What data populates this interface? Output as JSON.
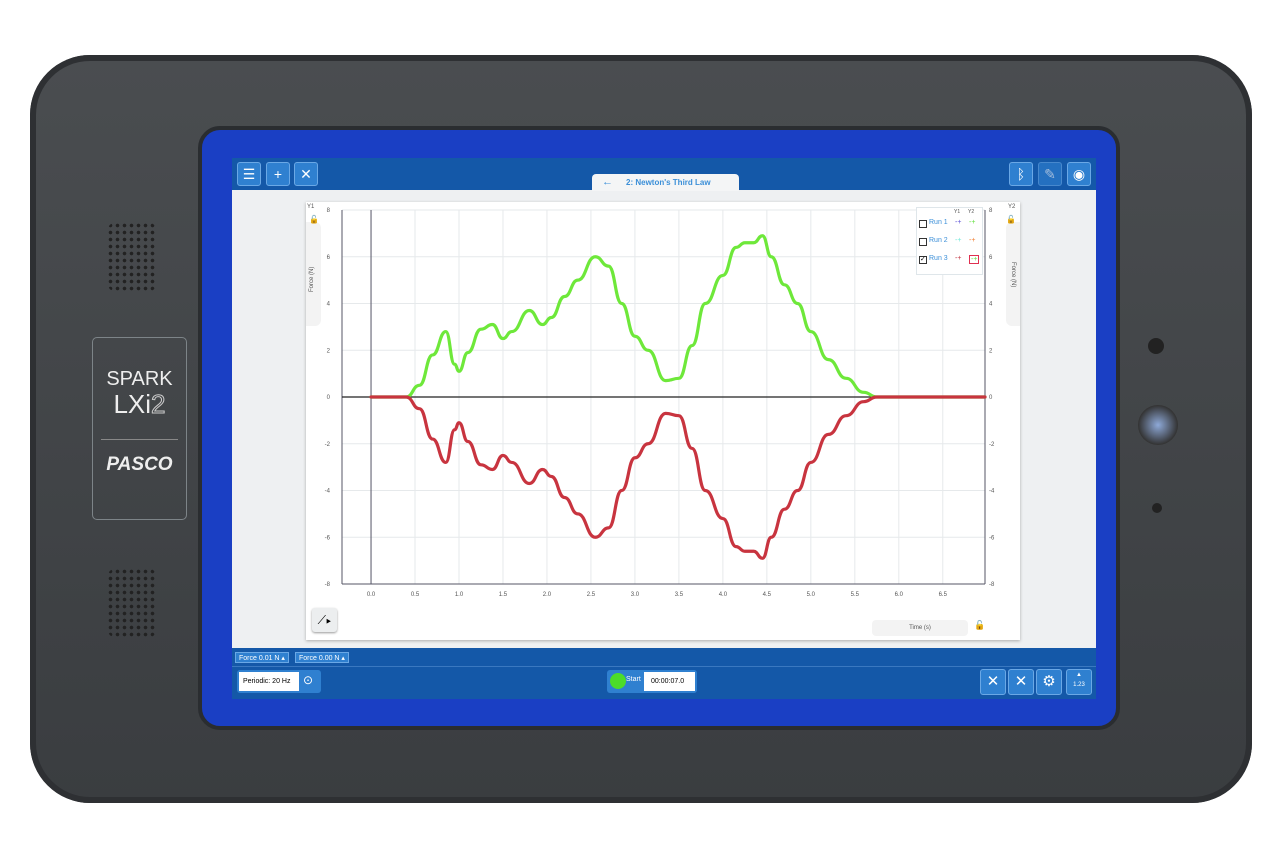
{
  "device": {
    "brand_line1": "SPARK",
    "brand_line2": "LXi",
    "brand_line2_suffix": "2",
    "maker": "PASCO"
  },
  "toolbar": {
    "icons": [
      "menu-icon",
      "new-file-icon",
      "close-file-icon"
    ],
    "right_icons": [
      "bluetooth-icon",
      "journal-icon",
      "camera-icon"
    ]
  },
  "tab": {
    "title": "2: Newton's Third Law"
  },
  "graph": {
    "y1_label": "Y1",
    "y2_label": "Y2",
    "y1_axis_title": "Force (N)",
    "y2_axis_title": "Force (N)",
    "x_axis_title": "Time (s)",
    "legend": {
      "header_y1": "Y1",
      "header_y2": "Y2",
      "runs": [
        {
          "label": "Run 1",
          "checked": false,
          "y1_color": "#5b4fd6",
          "y2_color": "#5fe03a"
        },
        {
          "label": "Run 2",
          "checked": false,
          "y1_color": "#6ee8d8",
          "y2_color": "#f07a2a"
        },
        {
          "label": "Run 3",
          "checked": true,
          "y1_color": "#c0303e",
          "y2_color": "#5fe03a"
        }
      ]
    }
  },
  "chart_data": {
    "type": "line",
    "xlabel": "Time (s)",
    "ylabel": "Force (N)",
    "y2label": "Force (N)",
    "xlim": [
      -0.33,
      6.98
    ],
    "ylim": [
      -8,
      8
    ],
    "x_ticks": [
      "0.0",
      "0.5",
      "1.0",
      "1.5",
      "2.0",
      "2.5",
      "3.0",
      "3.5",
      "4.0",
      "4.5",
      "5.0",
      "5.5",
      "6.0",
      "6.5"
    ],
    "y_ticks": [
      "8",
      "6",
      "4",
      "2",
      "0",
      "-2",
      "-4",
      "-6",
      "-8"
    ],
    "grid": true,
    "series": [
      {
        "name": "Run 3",
        "axis": "y2",
        "color": "#6ee83a",
        "x": [
          0,
          0.4,
          0.55,
          0.7,
          0.85,
          0.95,
          1.0,
          1.1,
          1.25,
          1.38,
          1.5,
          1.6,
          1.8,
          1.95,
          2.05,
          2.2,
          2.35,
          2.55,
          2.7,
          2.85,
          3.0,
          3.15,
          3.35,
          3.5,
          3.65,
          3.8,
          4.0,
          4.15,
          4.25,
          4.35,
          4.45,
          4.55,
          4.7,
          4.85,
          5.0,
          5.2,
          5.4,
          5.6,
          5.75,
          6.0,
          6.5,
          6.98
        ],
        "y": [
          0,
          0,
          0.5,
          1.8,
          2.8,
          1.4,
          1.1,
          1.9,
          2.9,
          3.1,
          2.5,
          2.8,
          3.7,
          3.1,
          3.4,
          4.3,
          5.0,
          6.0,
          5.6,
          4.0,
          2.6,
          2.0,
          0.7,
          0.8,
          2.2,
          4.0,
          5.2,
          6.4,
          6.6,
          6.6,
          6.9,
          6.0,
          4.8,
          4.0,
          2.8,
          1.6,
          0.8,
          0.2,
          0,
          0,
          0,
          0
        ]
      },
      {
        "name": "Run 3",
        "axis": "y1",
        "color": "#c8343f",
        "x": [
          0,
          0.4,
          0.55,
          0.7,
          0.85,
          0.95,
          1.0,
          1.1,
          1.25,
          1.38,
          1.5,
          1.6,
          1.8,
          1.95,
          2.05,
          2.2,
          2.35,
          2.55,
          2.7,
          2.85,
          3.0,
          3.15,
          3.35,
          3.5,
          3.65,
          3.8,
          4.0,
          4.15,
          4.25,
          4.35,
          4.45,
          4.55,
          4.7,
          4.85,
          5.0,
          5.2,
          5.4,
          5.6,
          5.75,
          6.0,
          6.5,
          6.98
        ],
        "y": [
          0,
          0,
          -0.5,
          -1.8,
          -2.8,
          -1.4,
          -1.1,
          -1.9,
          -2.9,
          -3.1,
          -2.5,
          -2.8,
          -3.7,
          -3.1,
          -3.4,
          -4.3,
          -5.0,
          -6.0,
          -5.6,
          -4.0,
          -2.6,
          -2.0,
          -0.7,
          -0.8,
          -2.2,
          -4.0,
          -5.2,
          -6.4,
          -6.6,
          -6.6,
          -6.9,
          -6.0,
          -4.8,
          -4.0,
          -2.8,
          -1.6,
          -0.8,
          -0.2,
          0,
          0,
          0,
          0
        ]
      }
    ]
  },
  "meters": [
    {
      "label": "Force",
      "value": "0.01 N"
    },
    {
      "label": "Force",
      "value": "0.00 N"
    }
  ],
  "controls": {
    "sample_rate": "Periodic: 20 Hz",
    "start_label": "Start",
    "timer": "00:00:07.0",
    "start_color": "#4cdc2a",
    "calc_badge": "1.23"
  }
}
